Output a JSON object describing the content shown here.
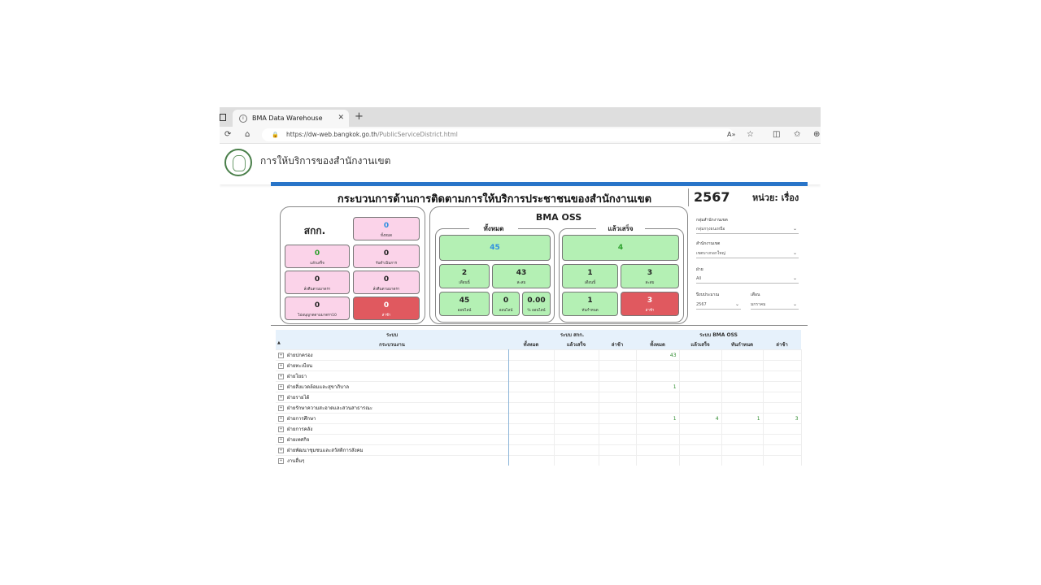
{
  "browser": {
    "tab_title": "BMA Data Warehouse",
    "url_host": "https://dw-web.bangkok.go.th",
    "url_path": "/PublicServiceDistrict.html"
  },
  "site_title": "การให้บริการของสำนักงานเขต",
  "dashboard": {
    "title": "กระบวนการด้านการติดตามการให้บริการประชาชนของสำนักงานเขต",
    "year": "2567",
    "unit": "หน่วย: เรื่อง"
  },
  "sakk": {
    "title": "สกก.",
    "total": {
      "value": "0",
      "label": "ทั้งหมด"
    },
    "done": {
      "value": "0",
      "label": "แล้วเสร็จ"
    },
    "in_progress": {
      "value": "0",
      "label": "รับดำเนินการ"
    },
    "order_a": {
      "value": "0",
      "label": "สั่งคืนตามมาตรา"
    },
    "order_b": {
      "value": "0",
      "label": "สั่งคืนตามมาตรา"
    },
    "not_allowed": {
      "value": "0",
      "label": "ไม่อนุญาตตามมาตรา10"
    },
    "late": {
      "value": "0",
      "label": "ล่าช้า"
    }
  },
  "oss": {
    "title": "BMA OSS",
    "all_section": "ทั้งหมด",
    "done_section": "แล้วเสร็จ",
    "all_total": "45",
    "month": {
      "value": "2",
      "label": "เดือนนี้"
    },
    "cumulative": {
      "value": "43",
      "label": "สะสม"
    },
    "offline": {
      "value": "45",
      "label": "ออฟไลน์"
    },
    "online": {
      "value": "0",
      "label": "ออนไลน์"
    },
    "online_pct": {
      "value": "0.00",
      "label": "% ออนไลน์"
    },
    "done_total": "4",
    "done_month": {
      "value": "1",
      "label": "เดือนนี้"
    },
    "done_cumulative": {
      "value": "3",
      "label": "สะสม"
    },
    "done_ontime": {
      "value": "1",
      "label": "ทันกำหนด"
    },
    "done_late": {
      "value": "3",
      "label": "ล่าช้า"
    }
  },
  "filters": {
    "group": {
      "label": "กลุ่มสำนักงานเขต",
      "value": "กลุ่มกรุงธนเหนือ"
    },
    "district": {
      "label": "สำนักงานเขต",
      "value": "เขตบางกอกใหญ่"
    },
    "division": {
      "label": "ฝ่าย",
      "value": "All"
    },
    "fiscal_year": {
      "label": "ปีงบประมาณ",
      "value": "2567"
    },
    "month": {
      "label": "เดือน",
      "value": "มกราคม"
    }
  },
  "table": {
    "h_system": "ระบบ",
    "h_process": "กระบวนงาน",
    "h_sakk": "ระบบ สกก.",
    "h_oss": "ระบบ BMA OSS",
    "h_cols": [
      "ทั้งหมด",
      "แล้วเสร็จ",
      "ล่าช้า",
      "ทั้งหมด",
      "แล้วเสร็จ",
      "ทันกำหนด",
      "ล่าช้า"
    ],
    "rows": [
      {
        "name": "ฝ่ายปกครอง",
        "c": [
          "",
          "",
          "",
          "43",
          "",
          "",
          ""
        ]
      },
      {
        "name": "ฝ่ายทะเบียน",
        "c": [
          "",
          "",
          "",
          "",
          "",
          "",
          ""
        ]
      },
      {
        "name": "ฝ่ายโยธา",
        "c": [
          "",
          "",
          "",
          "",
          "",
          "",
          ""
        ]
      },
      {
        "name": "ฝ่ายสิ่งแวดล้อมและสุขาภิบาล",
        "c": [
          "",
          "",
          "",
          "1",
          "",
          "",
          ""
        ]
      },
      {
        "name": "ฝ่ายรายได้",
        "c": [
          "",
          "",
          "",
          "",
          "",
          "",
          ""
        ]
      },
      {
        "name": "ฝ่ายรักษาความสะอาดและสวนสาธารณะ",
        "c": [
          "",
          "",
          "",
          "",
          "",
          "",
          ""
        ]
      },
      {
        "name": "ฝ่ายการศึกษา",
        "c": [
          "",
          "",
          "",
          "1",
          "4",
          "1",
          "3"
        ]
      },
      {
        "name": "ฝ่ายการคลัง",
        "c": [
          "",
          "",
          "",
          "",
          "",
          "",
          ""
        ]
      },
      {
        "name": "ฝ่ายเทศกิจ",
        "c": [
          "",
          "",
          "",
          "",
          "",
          "",
          ""
        ]
      },
      {
        "name": "ฝ่ายพัฒนาชุมชนและสวัสดิการสังคม",
        "c": [
          "",
          "",
          "",
          "",
          "",
          "",
          ""
        ]
      },
      {
        "name": "งานอื่นๆ",
        "c": [
          "",
          "",
          "",
          "",
          "",
          "",
          ""
        ]
      }
    ]
  }
}
